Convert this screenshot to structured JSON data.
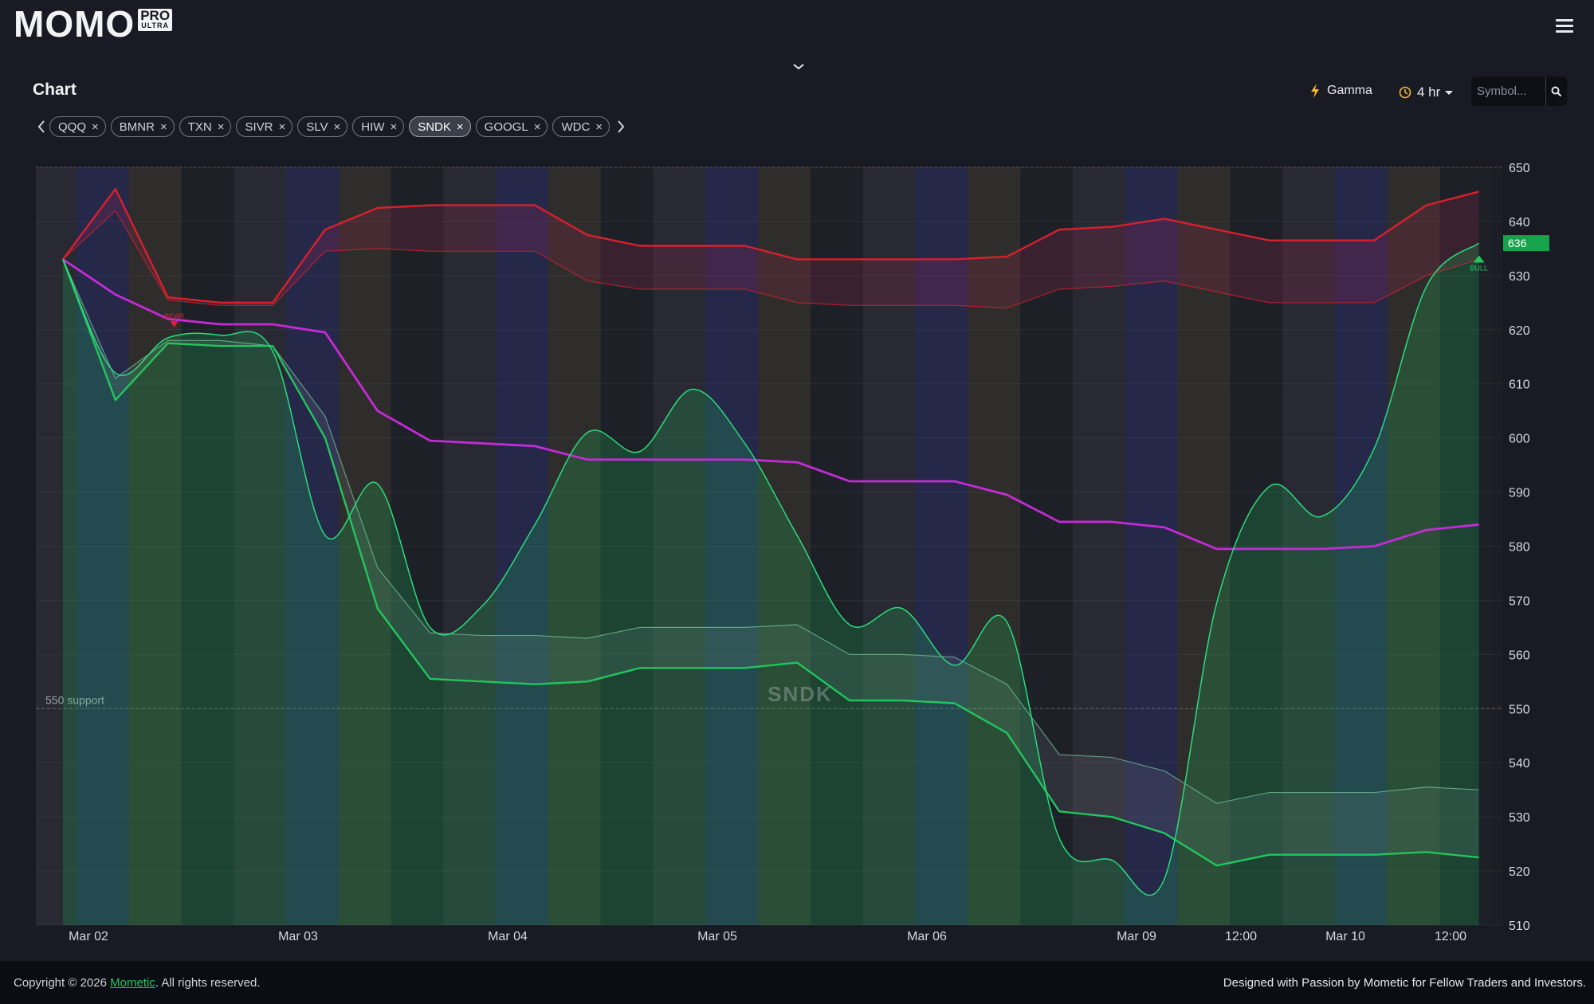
{
  "header": {
    "logo_text": "MOMO",
    "badge_top": "PRO",
    "badge_bottom": "ULTRA"
  },
  "toolbar": {
    "title": "Chart",
    "gamma_label": "Gamma",
    "interval_label": "4 hr",
    "search_placeholder": "Symbol..."
  },
  "tabs": [
    {
      "label": "QQQ",
      "active": false
    },
    {
      "label": "BMNR",
      "active": false
    },
    {
      "label": "TXN",
      "active": false
    },
    {
      "label": "SIVR",
      "active": false
    },
    {
      "label": "SLV",
      "active": false
    },
    {
      "label": "HIW",
      "active": false
    },
    {
      "label": "SNDK",
      "active": true
    },
    {
      "label": "GOOGL",
      "active": false
    },
    {
      "label": "WDC",
      "active": false
    }
  ],
  "chart_data": {
    "type": "line",
    "watermark": "SNDK",
    "ylim": [
      510,
      650
    ],
    "y_ticks": [
      650,
      640,
      630,
      620,
      610,
      600,
      590,
      580,
      570,
      560,
      550,
      540,
      530,
      520,
      510
    ],
    "x_labels": [
      "Mar 02",
      "Mar 03",
      "Mar 04",
      "Mar 05",
      "Mar 06",
      "Mar 09",
      "12:00",
      "Mar 10",
      "12:00"
    ],
    "price_label": "636",
    "support_label": "550 support",
    "support_value": 550,
    "bear_marker": {
      "label": "BEAR",
      "index": 2,
      "value": 621
    },
    "bull_marker": {
      "label": "BULL",
      "index": 27,
      "value": 633
    },
    "colors": {
      "upper": "#d9202d",
      "mid": "#c42bd6",
      "lower": "#22c55e",
      "price": "#2bdc7c",
      "label_bg": "#16a34a"
    },
    "series": [
      {
        "key": "upper_band",
        "values": [
          633,
          646,
          626,
          625,
          625,
          638.5,
          642.5,
          643,
          643,
          643,
          637.5,
          635.5,
          635.5,
          635.5,
          633,
          633,
          633,
          633,
          633.5,
          638.5,
          639,
          640.5,
          638.5,
          636.5,
          636.5,
          636.5,
          643,
          645.5
        ]
      },
      {
        "key": "upper_inner",
        "values": [
          633,
          642,
          625.5,
          624.5,
          624.5,
          634.5,
          635,
          634.5,
          634.5,
          634.5,
          629,
          627.5,
          627.5,
          627.5,
          625,
          624.5,
          624.5,
          624.5,
          624,
          627.5,
          628,
          629,
          627,
          625,
          625,
          625,
          630,
          633
        ]
      },
      {
        "key": "midline",
        "values": [
          633,
          626.5,
          622,
          621,
          621,
          619.5,
          605,
          599.5,
          599,
          598.5,
          596,
          596,
          596,
          596,
          595.5,
          592,
          592,
          592,
          589.5,
          584.5,
          584.5,
          583.5,
          579.5,
          579.5,
          579.5,
          580,
          583,
          584
        ]
      },
      {
        "key": "lower_inner",
        "values": [
          633,
          611,
          618,
          618,
          617,
          604,
          576,
          564,
          563.5,
          563.5,
          563,
          565,
          565,
          565,
          565.5,
          560,
          560,
          559.5,
          554.5,
          541.5,
          541,
          538.5,
          532.5,
          534.5,
          534.5,
          534.5,
          535.5,
          535
        ]
      },
      {
        "key": "lower_band",
        "values": [
          633,
          607,
          617.5,
          617,
          617,
          600,
          568.5,
          555.5,
          555,
          554.5,
          555,
          557.5,
          557.5,
          557.5,
          558.5,
          551.5,
          551.5,
          551,
          545.5,
          531,
          530,
          527,
          521,
          523,
          523,
          523,
          523.5,
          522.5
        ]
      },
      {
        "key": "price",
        "values": [
          633,
          612,
          618.5,
          619,
          616,
          582,
          591.5,
          565,
          569,
          584,
          601,
          597.5,
          609,
          599,
          582,
          565.5,
          568.5,
          558,
          566,
          526,
          522,
          518.5,
          569.5,
          591,
          585.5,
          598,
          628,
          636
        ]
      }
    ]
  },
  "footer": {
    "copyright_prefix": "Copyright © 2026 ",
    "brand_link": "Mometic",
    "copyright_suffix": ". All rights reserved.",
    "designed": "Designed with Passion by Mometic for Fellow Traders and Investors."
  }
}
